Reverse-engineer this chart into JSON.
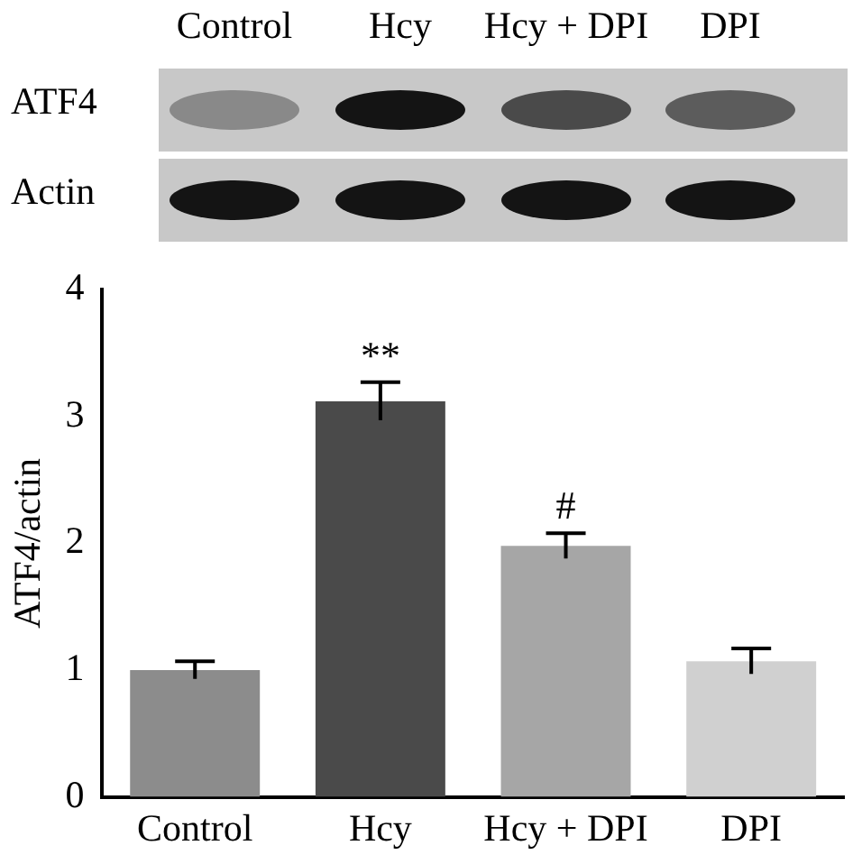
{
  "chart_data": {
    "type": "bar",
    "ylabel": "ATF4/actin",
    "categories": [
      "Control",
      "Hcy",
      "Hcy + DPI",
      "DPI"
    ],
    "values": [
      1.0,
      3.12,
      1.98,
      1.07
    ],
    "errors": [
      0.07,
      0.15,
      0.1,
      0.1
    ],
    "colors": [
      "#8c8c8c",
      "#4a4a4a",
      "#a6a6a6",
      "#d0d0d0"
    ],
    "ylim": [
      0,
      4
    ],
    "yticks": [
      0,
      1,
      2,
      3,
      4
    ],
    "grid": false,
    "legend": false,
    "annotations": [
      "Control",
      "Hcy",
      "Hcy + DPI",
      "DPI",
      "ATF4",
      "Actin",
      {
        "text": "**",
        "x": "Hcy",
        "y": 3.3
      },
      {
        "text": "#",
        "x": "Hcy + DPI",
        "y": 2.12
      }
    ]
  }
}
